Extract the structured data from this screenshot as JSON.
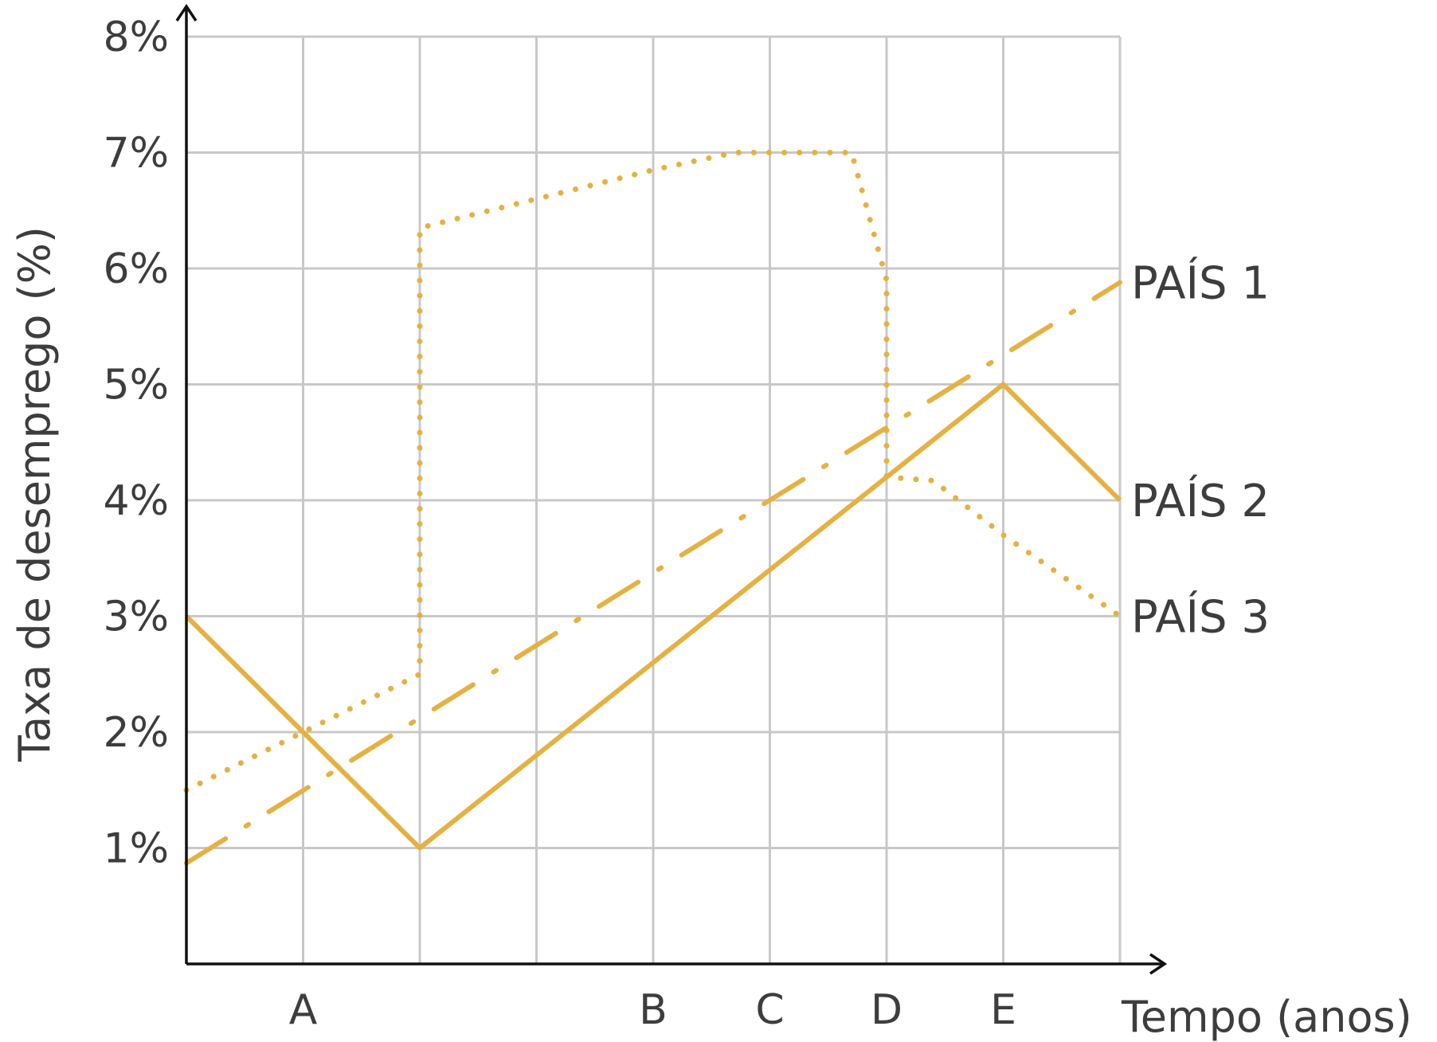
{
  "chart_data": {
    "type": "line",
    "xlabel": "Tempo (anos)",
    "ylabel": "Taxa de desemprego (%)",
    "ylim": [
      0,
      8
    ],
    "xlim": [
      0,
      8
    ],
    "grid": true,
    "y_ticks": [
      "1%",
      "2%",
      "3%",
      "4%",
      "5%",
      "6%",
      "7%",
      "8%"
    ],
    "categories": [
      {
        "x": 1,
        "label": "A"
      },
      {
        "x": 4,
        "label": "B"
      },
      {
        "x": 5,
        "label": "C"
      },
      {
        "x": 6,
        "label": "D"
      },
      {
        "x": 7,
        "label": "E"
      }
    ],
    "series": [
      {
        "name": "PAÍS 1",
        "style": "dash-dot",
        "points": [
          [
            0,
            0.87
          ],
          [
            8,
            5.88
          ]
        ]
      },
      {
        "name": "PAÍS 2",
        "style": "solid",
        "points": [
          [
            0,
            3.0
          ],
          [
            2,
            1.0
          ],
          [
            7,
            5.0
          ],
          [
            8,
            4.0
          ]
        ]
      },
      {
        "name": "PAÍS 3",
        "style": "dotted",
        "points": [
          [
            0,
            1.5
          ],
          [
            2,
            2.5
          ],
          [
            2,
            6.35
          ],
          [
            3,
            6.6
          ],
          [
            4,
            6.85
          ],
          [
            4.7,
            7.0
          ],
          [
            5.7,
            7.0
          ],
          [
            6,
            5.9
          ],
          [
            6,
            4.2
          ],
          [
            6.4,
            4.17
          ],
          [
            7,
            3.7
          ],
          [
            8,
            3.0
          ]
        ]
      }
    ],
    "colors": {
      "line": "#e5b143",
      "grid": "#c8c8c8",
      "axis": "#111111",
      "text": "#3d3d3d"
    }
  }
}
